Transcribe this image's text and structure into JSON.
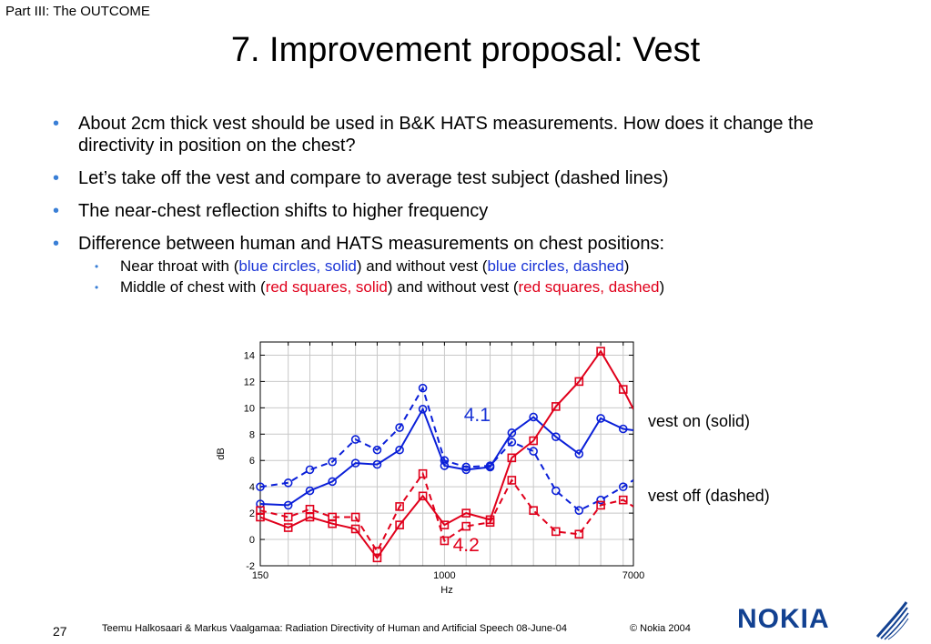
{
  "header": {
    "section": "Part III: The OUTCOME",
    "title": "7. Improvement proposal: Vest"
  },
  "bullets": [
    "About 2cm thick vest should be used in B&K HATS measurements. How does it change the directivity in position on the chest?",
    "Let’s take off the vest and compare to average test subject (dashed lines)",
    "The near-chest reflection shifts to higher frequency",
    "Difference between human and HATS measurements on chest positions:"
  ],
  "sub_bullets": [
    {
      "pre": "Near throat with (",
      "c1": "blue circles, solid",
      "mid": ") and without vest (",
      "c2": "blue circles, dashed",
      "post": ")"
    },
    {
      "pre": "Middle of chest with (",
      "c1": "red squares, solid",
      "mid": ") and without vest (",
      "c2": "red squares, dashed",
      "post": ")"
    }
  ],
  "notes": {
    "vest_on": "vest on (solid)",
    "vest_off": "vest off (dashed)"
  },
  "chart_data": {
    "type": "line",
    "x_scale": "log",
    "xlim": [
      150,
      7000
    ],
    "ylim": [
      -2,
      15
    ],
    "xlabel": "Hz",
    "ylabel": "dB",
    "x_ticks": [
      150,
      1000,
      7000
    ],
    "y_ticks": [
      -2,
      0,
      2,
      4,
      6,
      8,
      10,
      12,
      14
    ],
    "x": [
      150,
      200,
      250,
      315,
      400,
      500,
      630,
      800,
      1000,
      1250,
      1600,
      2000,
      2500,
      3150,
      4000,
      5000,
      6300,
      7000
    ],
    "grid": true,
    "annotations": [
      {
        "text": "4.1",
        "x": 1400,
        "y": 9.0,
        "color": "#1a34d6"
      },
      {
        "text": "4.2",
        "x": 1250,
        "y": -0.9,
        "color": "#e0001b"
      }
    ],
    "series": [
      {
        "marker": "circle",
        "line": "solid",
        "color": "#0a1fd8",
        "values": [
          2.7,
          2.6,
          3.7,
          4.4,
          5.8,
          5.7,
          6.8,
          9.9,
          5.6,
          5.3,
          5.5,
          8.1,
          9.3,
          7.8,
          6.5,
          9.2,
          8.4,
          8.3
        ]
      },
      {
        "marker": "circle",
        "line": "dashed",
        "color": "#0a1fd8",
        "values": [
          4.0,
          4.3,
          5.3,
          5.9,
          7.6,
          6.8,
          8.5,
          11.5,
          6.0,
          5.5,
          5.6,
          7.4,
          6.7,
          3.7,
          2.2,
          3.0,
          4.0,
          4.5
        ]
      },
      {
        "marker": "square",
        "line": "solid",
        "color": "#e0001b",
        "values": [
          1.7,
          0.9,
          1.7,
          1.2,
          0.8,
          -1.4,
          1.1,
          3.3,
          1.1,
          2.0,
          1.5,
          6.2,
          7.5,
          10.1,
          12.0,
          14.3,
          11.4,
          9.9
        ]
      },
      {
        "marker": "square",
        "line": "dashed",
        "color": "#e0001b",
        "values": [
          2.2,
          1.7,
          2.3,
          1.7,
          1.7,
          -0.9,
          2.5,
          5.0,
          -0.1,
          1.0,
          1.3,
          4.5,
          2.2,
          0.6,
          0.4,
          2.6,
          3.0,
          2.5
        ]
      }
    ]
  },
  "footer": {
    "page": "27",
    "text": "Teemu Halkosaari & Markus Vaalgamaa: Radiation Directivity of Human and Artificial Speech  08-June-04",
    "copyright": "© Nokia 2004",
    "logo": "NOKIA"
  }
}
